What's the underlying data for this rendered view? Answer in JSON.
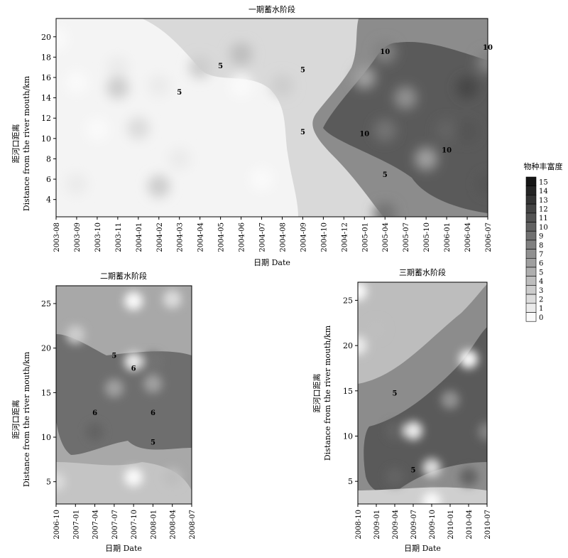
{
  "chart_data": [
    {
      "type": "heatmap",
      "title": "一期蓄水阶段",
      "xlabel": "日期 Date",
      "ylabel_cn": "距河口距离",
      "ylabel_en": "Distance from the river mouth/km",
      "x_ticks": [
        "2003-08",
        "2003-09",
        "2003-10",
        "2003-11",
        "2004-01",
        "2004-02",
        "2004-03",
        "2004-04",
        "2004-05",
        "2004-06",
        "2004-07",
        "2004-08",
        "2004-09",
        "2004-10",
        "2004-12",
        "2005-01",
        "2005-04",
        "2005-07",
        "2005-10",
        "2006-01",
        "2006-04",
        "2006-07"
      ],
      "y_ticks": [
        4,
        6,
        8,
        10,
        12,
        14,
        16,
        18,
        20
      ],
      "ylim": [
        2.3,
        21.8
      ],
      "contour_labels": [
        {
          "text": "5",
          "x": "2004-05",
          "y": 17.2
        },
        {
          "text": "5",
          "x": "2004-03",
          "y": 14.6
        },
        {
          "text": "5",
          "x": "2004-09",
          "y": 16.8
        },
        {
          "text": "5",
          "x": "2004-09",
          "y": 10.7
        },
        {
          "text": "5",
          "x": "2005-04",
          "y": 6.5
        },
        {
          "text": "10",
          "x": "2005-01",
          "y": 10.5
        },
        {
          "text": "10",
          "x": "2005-04",
          "y": 18.6
        },
        {
          "text": "10",
          "x": "2006-01",
          "y": 8.9
        },
        {
          "text": "10",
          "x": "2006-07",
          "y": 19.0
        }
      ],
      "blobs": [
        {
          "x": "2003-08",
          "y": 19.8,
          "level": 0
        },
        {
          "x": "2003-11",
          "y": 17.0,
          "level": 1
        },
        {
          "x": "2003-09",
          "y": 15.5,
          "level": 0
        },
        {
          "x": "2003-10",
          "y": 10.9,
          "level": 0
        },
        {
          "x": "2003-09",
          "y": 5.5,
          "level": 1
        },
        {
          "x": "2004-02",
          "y": 15.2,
          "level": 1
        },
        {
          "x": "2004-06",
          "y": 15.2,
          "level": 0
        },
        {
          "x": "2004-07",
          "y": 6.0,
          "level": 0
        },
        {
          "x": "2004-03",
          "y": 8.0,
          "level": 1
        },
        {
          "x": "2003-11",
          "y": 15.0,
          "level": 3
        },
        {
          "x": "2004-01",
          "y": 11.0,
          "level": 2
        },
        {
          "x": "2004-02",
          "y": 5.3,
          "level": 3
        },
        {
          "x": "2004-04",
          "y": 17.0,
          "level": 3
        },
        {
          "x": "2004-06",
          "y": 18.3,
          "level": 4
        },
        {
          "x": "2004-08",
          "y": 15.2,
          "level": 3
        },
        {
          "x": "2005-04",
          "y": 18.5,
          "level": 8
        },
        {
          "x": "2005-01",
          "y": 16.0,
          "level": 6
        },
        {
          "x": "2005-04",
          "y": 10.8,
          "level": 9
        },
        {
          "x": "2005-07",
          "y": 14.0,
          "level": 7
        },
        {
          "x": "2006-01",
          "y": 10.8,
          "level": 10
        },
        {
          "x": "2006-04",
          "y": 15.0,
          "level": 12
        },
        {
          "x": "2006-04",
          "y": 10.7,
          "level": 11
        },
        {
          "x": "2006-07",
          "y": 5.5,
          "level": 11
        },
        {
          "x": "2006-07",
          "y": 17.5,
          "level": 8
        },
        {
          "x": "2005-10",
          "y": 8.0,
          "level": 6
        },
        {
          "x": "2005-04",
          "y": 2.6,
          "level": 9
        }
      ]
    },
    {
      "type": "heatmap",
      "title": "二期蓄水阶段",
      "xlabel": "日期 Date",
      "ylabel_cn": "距河口距离",
      "ylabel_en": "Distance from the river mouth/km",
      "x_ticks": [
        "2006-10",
        "2007-01",
        "2007-04",
        "2007-07",
        "2007-10",
        "2008-01",
        "2008-04",
        "2008-07"
      ],
      "y_ticks": [
        5,
        10,
        15,
        20,
        25
      ],
      "ylim": [
        2.5,
        27.0
      ],
      "contour_labels": [
        {
          "text": "5",
          "x": "2007-07",
          "y": 19.2
        },
        {
          "text": "6",
          "x": "2007-10",
          "y": 17.8
        },
        {
          "text": "6",
          "x": "2007-04",
          "y": 12.8
        },
        {
          "text": "6",
          "x": "2008-01",
          "y": 12.8
        },
        {
          "text": "5",
          "x": "2008-01",
          "y": 9.5
        }
      ],
      "blobs": [
        {
          "x": "2007-10",
          "y": 25.3,
          "level": 0
        },
        {
          "x": "2008-04",
          "y": 25.5,
          "level": 2
        },
        {
          "x": "2007-01",
          "y": 21.5,
          "level": 3
        },
        {
          "x": "2007-07",
          "y": 15.5,
          "level": 6
        },
        {
          "x": "2008-01",
          "y": 16.0,
          "level": 6
        },
        {
          "x": "2007-04",
          "y": 10.6,
          "level": 10
        },
        {
          "x": "2007-10",
          "y": 18.5,
          "level": 1
        },
        {
          "x": "2008-01",
          "y": 18.5,
          "level": 9
        },
        {
          "x": "2007-10",
          "y": 5.5,
          "level": 0
        },
        {
          "x": "2008-04",
          "y": 5.5,
          "level": 4
        },
        {
          "x": "2006-10",
          "y": 5.0,
          "level": 2
        }
      ]
    },
    {
      "type": "heatmap",
      "title": "三期蓄水阶段",
      "xlabel": "日期 Date",
      "ylabel_cn": "距河口距离",
      "ylabel_en": "Distance from the river mouth/km",
      "x_ticks": [
        "2008-10",
        "2009-01",
        "2009-04",
        "2009-07",
        "2009-10",
        "2010-01",
        "2010-04",
        "2010-07"
      ],
      "y_ticks": [
        5,
        10,
        15,
        20,
        25
      ],
      "ylim": [
        2.5,
        27.0
      ],
      "contour_labels": [
        {
          "text": "5",
          "x": "2009-04",
          "y": 14.8
        },
        {
          "text": "5",
          "x": "2009-07",
          "y": 6.3
        }
      ],
      "blobs": [
        {
          "x": "2008-10",
          "y": 26.0,
          "level": 0
        },
        {
          "x": "2008-10",
          "y": 20.0,
          "level": 1
        },
        {
          "x": "2009-01",
          "y": 21.8,
          "level": 4
        },
        {
          "x": "2010-04",
          "y": 18.5,
          "level": 0
        },
        {
          "x": "2010-01",
          "y": 14.0,
          "level": 7
        },
        {
          "x": "2010-07",
          "y": 10.5,
          "level": 8
        },
        {
          "x": "2009-04",
          "y": 10.6,
          "level": 10
        },
        {
          "x": "2009-07",
          "y": 10.6,
          "level": 1
        },
        {
          "x": "2009-04",
          "y": 5.5,
          "level": 10
        },
        {
          "x": "2010-04",
          "y": 5.5,
          "level": 10
        },
        {
          "x": "2009-10",
          "y": 6.5,
          "level": 2
        },
        {
          "x": "2009-10",
          "y": 2.8,
          "level": 0
        }
      ]
    }
  ],
  "legend": {
    "title": "物种丰富度",
    "levels": [
      15,
      14,
      13,
      12,
      11,
      10,
      9,
      8,
      7,
      6,
      5,
      4,
      3,
      2,
      1,
      0
    ]
  }
}
